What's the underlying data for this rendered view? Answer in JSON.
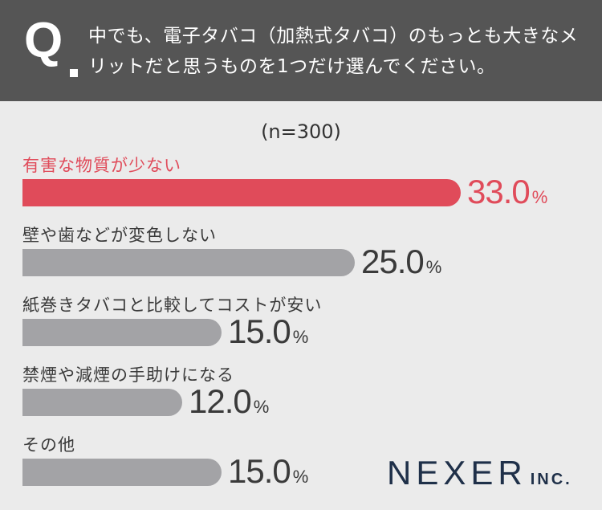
{
  "header": {
    "q_mark": "Q",
    "question": "中でも、電子タバコ（加熱式タバコ）のもっとも大きなメリットだと思うものを1つだけ選んでください。"
  },
  "sample_size": "(n=300)",
  "chart_data": {
    "type": "bar",
    "orientation": "horizontal",
    "categories": [
      "有害な物質が少ない",
      "壁や歯などが変色しない",
      "紙巻きタバコと比較してコストが安い",
      "禁煙や減煙の手助けになる",
      "その他"
    ],
    "values": [
      33.0,
      25.0,
      15.0,
      12.0,
      15.0
    ],
    "value_labels": [
      "33.0",
      "25.0",
      "15.0",
      "12.0",
      "15.0"
    ],
    "unit": "%",
    "highlight_index": 0,
    "colors": {
      "highlight": "#e04b5a",
      "default": "#a3a3a6"
    }
  },
  "logo": {
    "main": "NEXER",
    "suffix": "INC."
  }
}
